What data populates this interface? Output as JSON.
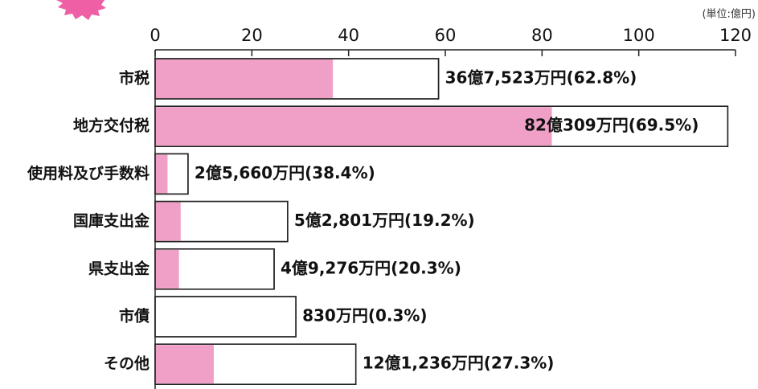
{
  "chart_data": {
    "type": "bar",
    "orientation": "horizontal",
    "unit_label": "(単位:億円)",
    "categories": [
      "市税",
      "地方交付税",
      "使用料及び手数料",
      "国庫支出金",
      "県支出金",
      "市債",
      "その他"
    ],
    "series": [
      {
        "color": "#f0a0c6",
        "values": [
          36.7523,
          82.0309,
          2.566,
          5.2801,
          4.9276,
          0.083,
          12.1236
        ],
        "value_labels": [
          "36億7,523万円(62.8%)",
          "82億309万円(69.5%)",
          "2億5,660万円(38.4%)",
          "5億2,801万円(19.2%)",
          "4億9,276万円(20.3%)",
          "830万円(0.3%)",
          "12億1,236万円(27.3%)"
        ]
      },
      {
        "color": "#ffffff",
        "values": [
          58.6,
          118.4,
          6.8,
          27.4,
          24.6,
          29.1,
          41.5
        ]
      }
    ],
    "xlim": [
      0,
      120
    ],
    "xticks": [
      0,
      20,
      40,
      60,
      80,
      100,
      120
    ]
  }
}
